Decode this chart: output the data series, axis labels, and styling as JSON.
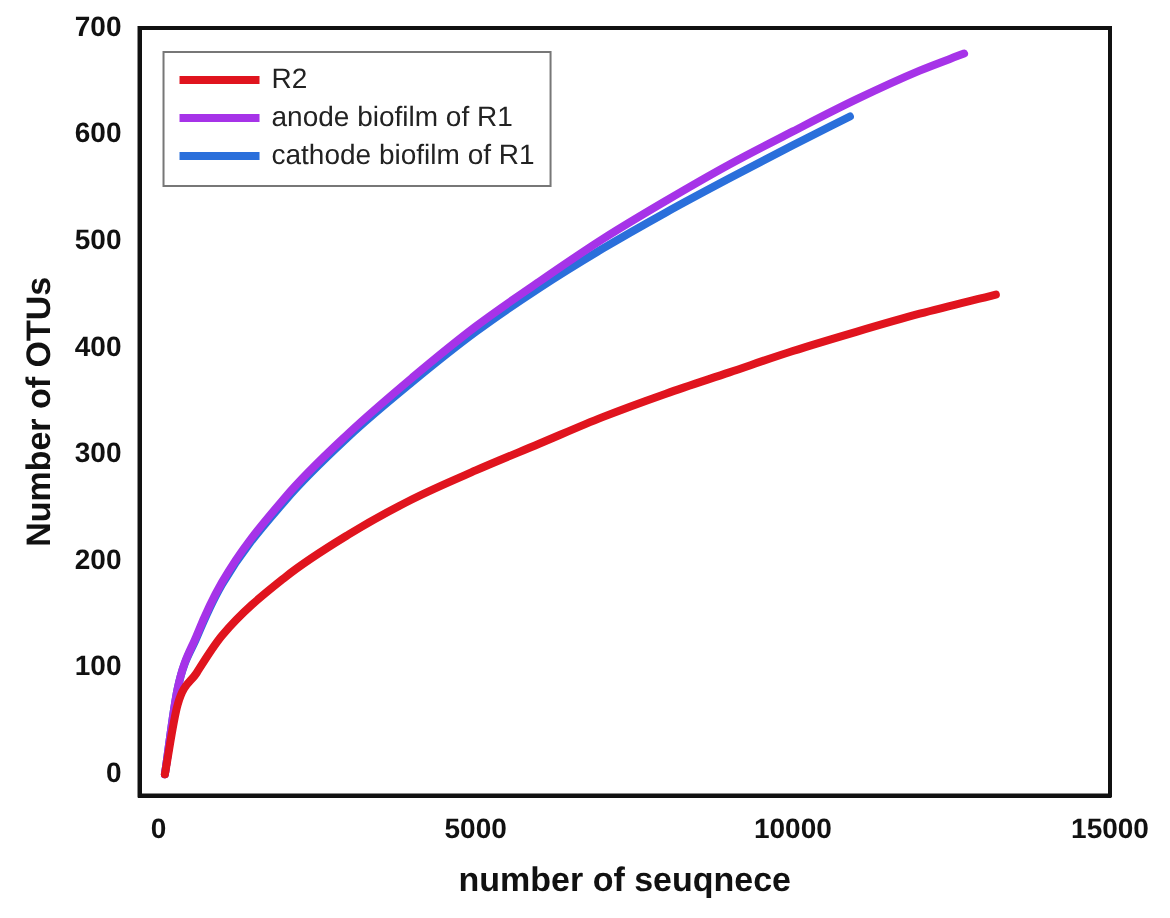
{
  "chart_data": {
    "type": "line",
    "xlabel": "number of seuqnece",
    "ylabel": "Number of OTUs",
    "xlim": [
      -300,
      15000
    ],
    "ylim": [
      -20,
      700
    ],
    "xticks": [
      0,
      5000,
      10000,
      15000
    ],
    "yticks": [
      0,
      100,
      200,
      300,
      400,
      500,
      600,
      700
    ],
    "grid": false,
    "legend": "top left",
    "marker": "none",
    "line_style": "solid",
    "series": [
      {
        "name": "R2",
        "color": "#e0141e",
        "x": [
          100,
          300,
          600,
          1000,
          2000,
          3000,
          4000,
          5000,
          6000,
          7000,
          8000,
          9000,
          10000,
          11000,
          12000,
          13200
        ],
        "values": [
          0,
          65,
          95,
          130,
          185,
          225,
          258,
          285,
          310,
          335,
          357,
          377,
          397,
          415,
          432,
          450
        ]
      },
      {
        "name": "anode biofilm of R1",
        "color": "#a633e8",
        "x": [
          100,
          300,
          600,
          1000,
          2000,
          3000,
          4000,
          5000,
          6000,
          7000,
          8000,
          9000,
          10000,
          11000,
          12000,
          12700
        ],
        "values": [
          0,
          80,
          130,
          180,
          260,
          320,
          372,
          420,
          462,
          502,
          538,
          572,
          603,
          633,
          660,
          676
        ]
      },
      {
        "name": "cathode biofilm of R1",
        "color": "#2a6fdb",
        "x": [
          100,
          300,
          600,
          1000,
          2000,
          3000,
          4000,
          5000,
          6000,
          7000,
          8000,
          9000,
          10000,
          10900
        ],
        "values": [
          0,
          80,
          128,
          178,
          257,
          317,
          368,
          415,
          456,
          493,
          527,
          559,
          590,
          617
        ]
      }
    ]
  }
}
